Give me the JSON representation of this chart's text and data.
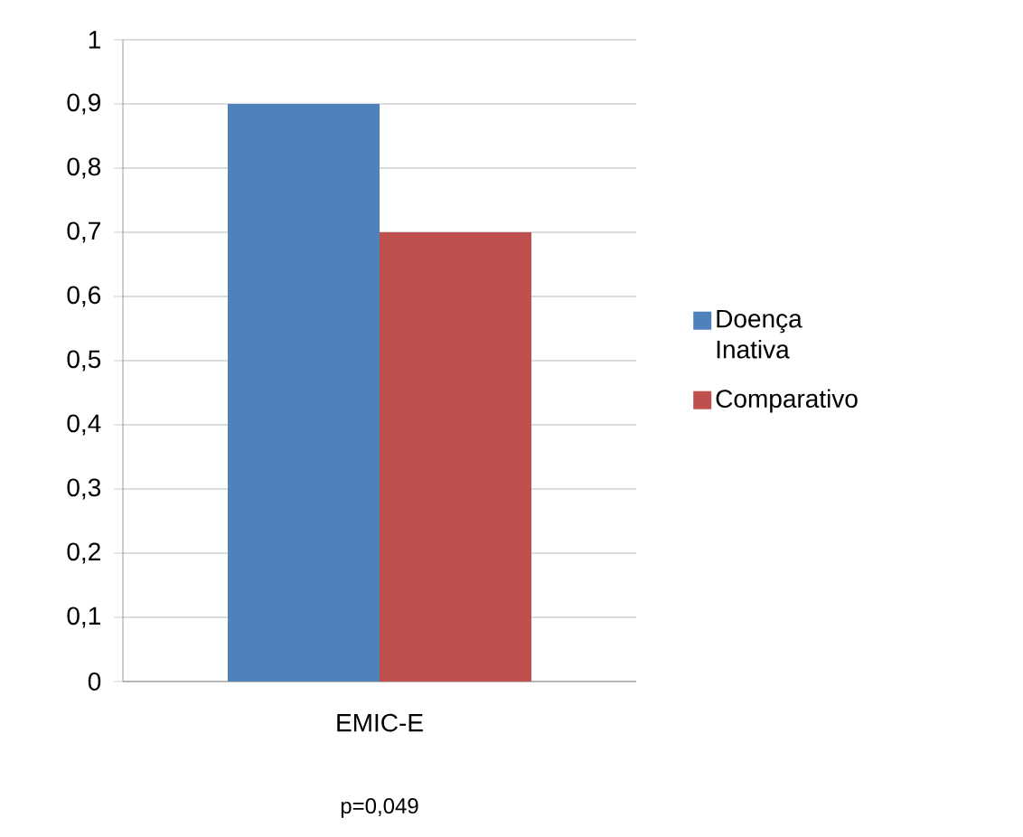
{
  "chart_data": {
    "type": "bar",
    "categories": [
      "EMIC-E"
    ],
    "series": [
      {
        "name": "Doença Inativa",
        "color": "#4f81bd",
        "values": [
          0.9
        ]
      },
      {
        "name": "Comparativo",
        "color": "#c0504d",
        "values": [
          0.7
        ]
      }
    ],
    "ylim": [
      0,
      1
    ],
    "yticks": [
      0,
      {
        "value": 0.1,
        "label": "0,1"
      },
      {
        "value": 0.2,
        "label": "0,2"
      },
      {
        "value": 0.3,
        "label": "0,3"
      },
      {
        "value": 0.4,
        "label": "0,4"
      },
      {
        "value": 0.5,
        "label": "0,5"
      },
      {
        "value": 0.6,
        "label": "0,6"
      },
      {
        "value": 0.7,
        "label": "0,7"
      },
      {
        "value": 0.8,
        "label": "0,8"
      },
      {
        "value": 0.9,
        "label": "0,9"
      },
      1
    ],
    "grid": "y",
    "legend": "right",
    "annotations": [
      "p=0,049"
    ]
  }
}
